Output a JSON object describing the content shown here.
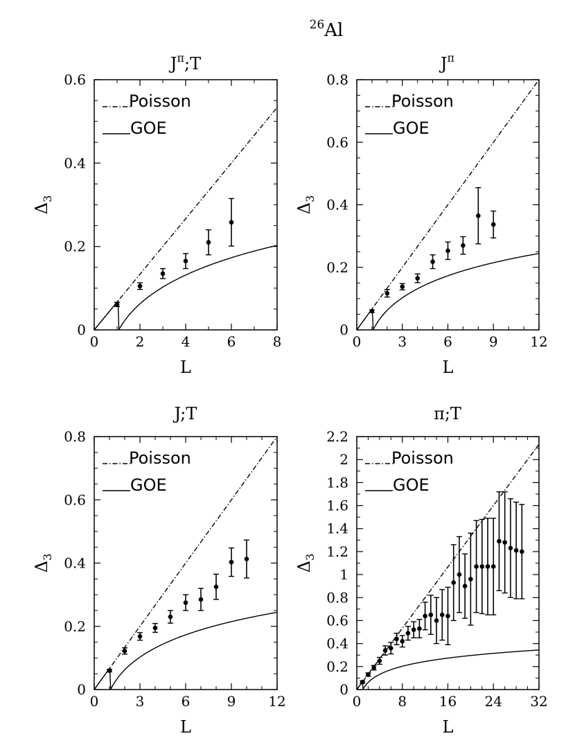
{
  "figure": {
    "suptitle_mass": "26",
    "suptitle_element": "Al"
  },
  "chart_data": [
    {
      "type": "scatter",
      "title": "J",
      "title_sup": "π",
      "title_suffix": ";T",
      "xlabel": "L",
      "ylabel": "Δ",
      "ylabel_sub": "3",
      "xlim": [
        0,
        8
      ],
      "ylim": [
        0,
        0.6
      ],
      "xticks": [
        0,
        2,
        4,
        6,
        8
      ],
      "xtick_labels": [
        "0",
        "2",
        "4",
        "6",
        "8"
      ],
      "yticks": [
        0,
        0.2,
        0.4,
        0.6
      ],
      "ytick_labels": [
        "0",
        "0.2",
        "0.4",
        "0.6"
      ],
      "legend": [
        "Poisson",
        "GOE"
      ],
      "series": [
        {
          "name": "Poisson",
          "kind": "line",
          "formula": "L/15",
          "style": "dash-dot"
        },
        {
          "name": "GOE",
          "kind": "line",
          "formula": "goe",
          "style": "solid"
        },
        {
          "name": "data",
          "kind": "errorbar",
          "x": [
            1,
            2,
            3,
            4,
            5,
            6
          ],
          "y": [
            0.061,
            0.105,
            0.135,
            0.165,
            0.21,
            0.258
          ],
          "yerr": [
            0.005,
            0.008,
            0.012,
            0.018,
            0.03,
            0.057
          ]
        }
      ]
    },
    {
      "type": "scatter",
      "title": "J",
      "title_sup": "π",
      "title_suffix": "",
      "xlabel": "L",
      "ylabel": "Δ",
      "ylabel_sub": "3",
      "xlim": [
        0,
        12
      ],
      "ylim": [
        0,
        0.8
      ],
      "xticks": [
        0,
        3,
        6,
        9,
        12
      ],
      "xtick_labels": [
        "0",
        "3",
        "6",
        "9",
        "12"
      ],
      "yticks": [
        0,
        0.2,
        0.4,
        0.6,
        0.8
      ],
      "ytick_labels": [
        "0",
        "0.2",
        "0.4",
        "0.6",
        "0.8"
      ],
      "legend": [
        "Poisson",
        "GOE"
      ],
      "series": [
        {
          "name": "Poisson",
          "kind": "line",
          "formula": "L/15",
          "style": "dash-dot"
        },
        {
          "name": "GOE",
          "kind": "line",
          "formula": "goe",
          "style": "solid"
        },
        {
          "name": "data",
          "kind": "errorbar",
          "x": [
            1,
            2,
            3,
            4,
            5,
            6,
            7,
            8,
            9
          ],
          "y": [
            0.06,
            0.117,
            0.138,
            0.165,
            0.218,
            0.253,
            0.27,
            0.365,
            0.337
          ],
          "yerr": [
            0.004,
            0.012,
            0.01,
            0.014,
            0.022,
            0.028,
            0.028,
            0.09,
            0.043
          ]
        }
      ]
    },
    {
      "type": "scatter",
      "title": "J;T",
      "title_sup": "",
      "title_suffix": "",
      "xlabel": "L",
      "ylabel": "Δ",
      "ylabel_sub": "3",
      "xlim": [
        0,
        12
      ],
      "ylim": [
        0,
        0.8
      ],
      "xticks": [
        0,
        3,
        6,
        9,
        12
      ],
      "xtick_labels": [
        "0",
        "3",
        "6",
        "9",
        "12"
      ],
      "yticks": [
        0,
        0.2,
        0.4,
        0.6,
        0.8
      ],
      "ytick_labels": [
        "0",
        "0.2",
        "0.4",
        "0.6",
        "0.8"
      ],
      "legend": [
        "Poisson",
        "GOE"
      ],
      "series": [
        {
          "name": "Poisson",
          "kind": "line",
          "formula": "L/15",
          "style": "dash-dot"
        },
        {
          "name": "GOE",
          "kind": "line",
          "formula": "goe",
          "style": "solid"
        },
        {
          "name": "data",
          "kind": "errorbar",
          "x": [
            1,
            2,
            3,
            4,
            5,
            6,
            7,
            8,
            9,
            10
          ],
          "y": [
            0.06,
            0.122,
            0.168,
            0.195,
            0.23,
            0.275,
            0.285,
            0.325,
            0.403,
            0.413
          ],
          "yerr": [
            0.004,
            0.01,
            0.012,
            0.014,
            0.02,
            0.025,
            0.035,
            0.04,
            0.045,
            0.06
          ]
        }
      ]
    },
    {
      "type": "scatter",
      "title": "π;T",
      "title_sup": "",
      "title_suffix": "",
      "xlabel": "L",
      "ylabel": "Δ",
      "ylabel_sub": "3",
      "xlim": [
        0,
        32
      ],
      "ylim": [
        0,
        2.2
      ],
      "xticks": [
        0,
        8,
        16,
        24,
        32
      ],
      "xtick_labels": [
        "0",
        "8",
        "16",
        "24",
        "32"
      ],
      "yticks": [
        0,
        0.2,
        0.4,
        0.6,
        0.8,
        1,
        1.2,
        1.4,
        1.6,
        1.8,
        2,
        2.2
      ],
      "ytick_labels": [
        "0",
        "0.2",
        "0.4",
        "0.6",
        "0.8",
        "1",
        "1.2",
        "1.4",
        "1.6",
        "1.8",
        "2",
        "2.2"
      ],
      "legend": [
        "Poisson",
        "GOE"
      ],
      "series": [
        {
          "name": "Poisson",
          "kind": "line",
          "formula": "L/15",
          "style": "dash-dot"
        },
        {
          "name": "GOE",
          "kind": "line",
          "formula": "goe",
          "style": "solid"
        },
        {
          "name": "data",
          "kind": "errorbar",
          "x": [
            1,
            2,
            3,
            4,
            5,
            6,
            7,
            8,
            9,
            10,
            11,
            12,
            13,
            14,
            15,
            16,
            17,
            18,
            19,
            20,
            21,
            22,
            23,
            24,
            25,
            26,
            27,
            28,
            29
          ],
          "y": [
            0.065,
            0.13,
            0.19,
            0.25,
            0.34,
            0.36,
            0.44,
            0.42,
            0.49,
            0.52,
            0.53,
            0.64,
            0.65,
            0.6,
            0.65,
            0.64,
            0.93,
            1.0,
            0.9,
            0.96,
            1.07,
            1.07,
            1.07,
            1.07,
            1.29,
            1.28,
            1.23,
            1.21,
            1.2
          ],
          "yerr": [
            0.01,
            0.015,
            0.02,
            0.03,
            0.04,
            0.05,
            0.05,
            0.05,
            0.06,
            0.07,
            0.08,
            0.12,
            0.17,
            0.2,
            0.22,
            0.25,
            0.33,
            0.33,
            0.28,
            0.4,
            0.4,
            0.41,
            0.42,
            0.42,
            0.43,
            0.44,
            0.43,
            0.42,
            0.41
          ]
        }
      ]
    }
  ]
}
